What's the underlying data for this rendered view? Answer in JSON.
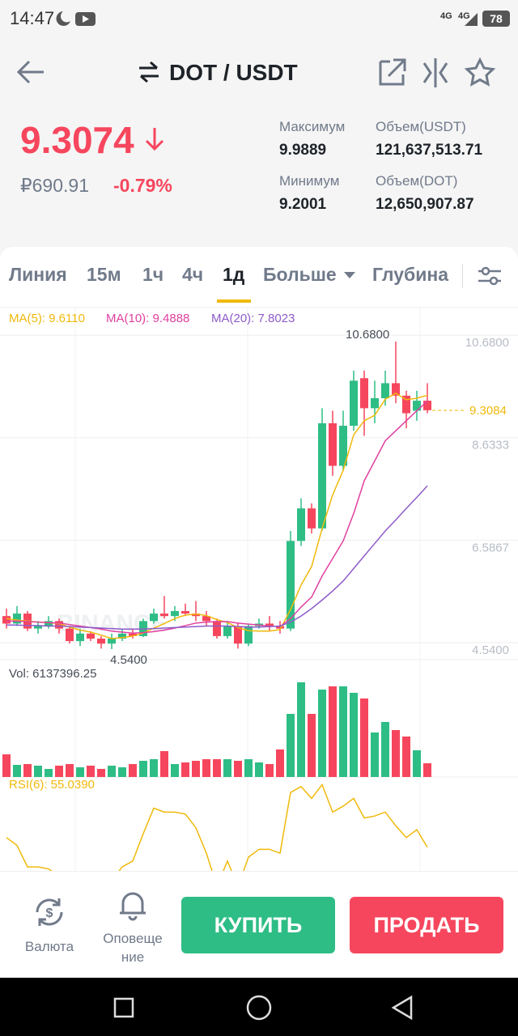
{
  "status_bar": {
    "time": "14:47",
    "network": [
      "4G",
      "4G"
    ],
    "battery": "78"
  },
  "header": {
    "pair": "DOT / USDT"
  },
  "ticker": {
    "price": "9.3074",
    "fiat": "₽690.91",
    "change": "-0.79%",
    "stats": [
      {
        "label": "Максимум",
        "value": "9.9889"
      },
      {
        "label": "Объем(USDT)",
        "value": "121,637,513.71"
      },
      {
        "label": "Минимум",
        "value": "9.2001"
      },
      {
        "label": "Объем(DOT)",
        "value": "12,650,907.87"
      }
    ]
  },
  "tabs": [
    "Линия",
    "15м",
    "1ч",
    "4ч",
    "1д",
    "Больше",
    "Глубина"
  ],
  "chart_data": {
    "type": "candlestick",
    "watermark": "BINANCE",
    "ylim": [
      4.33,
      11.36
    ],
    "yticks": [
      {
        "value": 10.68,
        "label": "10.6800"
      },
      {
        "value": 8.6333,
        "label": "8.6333"
      },
      {
        "value": 6.5867,
        "label": "6.5867"
      },
      {
        "value": 4.54,
        "label": "4.5400"
      }
    ],
    "up_color": "#2ebd85",
    "down_color": "#f6465d",
    "last_price": {
      "value": 9.3084,
      "label": "9.3084",
      "color": "#f0b90b"
    },
    "high_marker": {
      "value": 10.68,
      "label": "10.6800",
      "index": 37
    },
    "low_marker": {
      "value": 4.54,
      "label": "4.5400",
      "index": 10
    },
    "open": [
      5.2,
      5.05,
      5.25,
      4.95,
      5.0,
      5.1,
      4.95,
      4.7,
      4.85,
      4.75,
      4.65,
      4.75,
      4.85,
      4.8,
      5.1,
      5.25,
      5.2,
      5.3,
      5.25,
      5.2,
      5.1,
      4.8,
      5.0,
      4.65,
      5.0,
      5.05,
      5.0,
      4.95,
      6.7,
      7.35,
      6.95,
      9.05,
      8.2,
      9.0,
      9.95,
      9.35,
      9.55,
      9.85,
      9.6,
      9.3,
      9.5
    ],
    "high": [
      5.35,
      5.4,
      5.3,
      5.1,
      5.2,
      5.15,
      5.0,
      4.95,
      4.9,
      4.8,
      4.85,
      4.95,
      4.95,
      5.15,
      5.35,
      5.6,
      5.4,
      5.45,
      5.5,
      5.3,
      5.15,
      5.1,
      5.05,
      5.05,
      5.15,
      5.2,
      5.1,
      6.9,
      7.55,
      7.45,
      9.35,
      9.3,
      9.3,
      10.1,
      10.1,
      9.9,
      10.1,
      10.68,
      9.7,
      9.7,
      9.85
    ],
    "low": [
      4.95,
      5.0,
      4.9,
      4.85,
      4.95,
      4.85,
      4.65,
      4.6,
      4.7,
      4.55,
      4.54,
      4.7,
      4.75,
      4.78,
      5.05,
      5.15,
      5.1,
      5.2,
      5.1,
      5.0,
      4.75,
      4.75,
      4.55,
      4.6,
      4.95,
      4.9,
      4.85,
      4.9,
      6.6,
      6.85,
      6.9,
      8.0,
      8.1,
      8.9,
      8.8,
      9.05,
      9.4,
      9.45,
      8.95,
      9.1,
      9.25
    ],
    "close": [
      5.05,
      5.25,
      4.95,
      5.0,
      5.1,
      4.95,
      4.7,
      4.85,
      4.75,
      4.65,
      4.75,
      4.85,
      4.8,
      5.1,
      5.25,
      5.2,
      5.3,
      5.25,
      5.2,
      5.1,
      4.8,
      5.0,
      4.65,
      5.0,
      5.05,
      5.0,
      4.95,
      6.7,
      7.35,
      6.95,
      9.05,
      8.2,
      9.0,
      9.9,
      9.35,
      9.55,
      9.85,
      9.6,
      9.25,
      9.5,
      9.31
    ],
    "ma": [
      {
        "label": "MA(5): 9.6110",
        "color": "#f0b90b",
        "values": [
          5.15,
          5.12,
          5.1,
          5.08,
          5.07,
          5.05,
          4.98,
          4.92,
          4.88,
          4.82,
          4.75,
          4.77,
          4.8,
          4.86,
          4.96,
          5.05,
          5.15,
          5.22,
          5.24,
          5.21,
          5.13,
          5.07,
          4.97,
          4.91,
          4.9,
          4.9,
          4.93,
          5.33,
          5.82,
          6.19,
          6.95,
          7.62,
          8.11,
          8.82,
          9.1,
          9.21,
          9.53,
          9.65,
          9.52,
          9.55,
          9.61
        ]
      },
      {
        "label": "MA(10): 9.4888",
        "color": "#e040a0",
        "values": [
          5.1,
          5.1,
          5.09,
          5.08,
          5.07,
          5.06,
          5.03,
          5.0,
          4.97,
          4.94,
          4.9,
          4.88,
          4.86,
          4.87,
          4.89,
          4.92,
          4.96,
          5.01,
          5.06,
          5.08,
          5.09,
          5.09,
          5.06,
          5.04,
          5.02,
          5.0,
          4.99,
          5.15,
          5.38,
          5.58,
          6.0,
          6.35,
          6.7,
          7.25,
          7.9,
          8.3,
          8.7,
          8.9,
          9.1,
          9.3,
          9.49
        ]
      },
      {
        "label": "MA(20): 7.8023",
        "color": "#8e5bc9",
        "values": [
          5.02,
          5.02,
          5.01,
          5.01,
          5.0,
          5.0,
          4.99,
          4.98,
          4.97,
          4.96,
          4.95,
          4.94,
          4.94,
          4.94,
          4.95,
          4.96,
          4.97,
          4.98,
          4.99,
          5.0,
          5.0,
          5.0,
          4.99,
          4.98,
          4.98,
          4.99,
          5.0,
          5.08,
          5.2,
          5.35,
          5.52,
          5.7,
          5.9,
          6.15,
          6.4,
          6.65,
          6.9,
          7.12,
          7.35,
          7.57,
          7.8
        ]
      }
    ],
    "volume": {
      "label": "Vol: 6137396.25",
      "values": [
        10108000,
        5415000,
        5776000,
        5054000,
        3610000,
        5054000,
        5776000,
        4332000,
        5054000,
        3610000,
        5054000,
        4332000,
        5776000,
        7220000,
        7942000,
        11552000,
        5776000,
        6498000,
        7220000,
        7942000,
        7942000,
        7942000,
        7220000,
        7942000,
        6498000,
        5776000,
        12274000,
        28158000,
        42237000,
        28158000,
        38988000,
        40432000,
        40432000,
        37544000,
        35017000,
        19855000,
        24548000,
        20938000,
        18050000,
        11913000,
        6137396.25
      ]
    },
    "rsi": {
      "label": "RSI(6): 55.0390",
      "color": "#f0b90b",
      "values": [
        60,
        56,
        45,
        45,
        44,
        40,
        35,
        38,
        36,
        32,
        38,
        45,
        48,
        62,
        75,
        73,
        73,
        72,
        65,
        52,
        35,
        48,
        35,
        50,
        54,
        54,
        52,
        83,
        86,
        80,
        87,
        73,
        76,
        80,
        70,
        71,
        73,
        66,
        60,
        64,
        55
      ]
    }
  },
  "bottom_bar": {
    "currency": "Валюта",
    "alerts": "Оповеще ние",
    "buy": "КУПИТЬ",
    "sell": "ПРОДАТЬ"
  }
}
